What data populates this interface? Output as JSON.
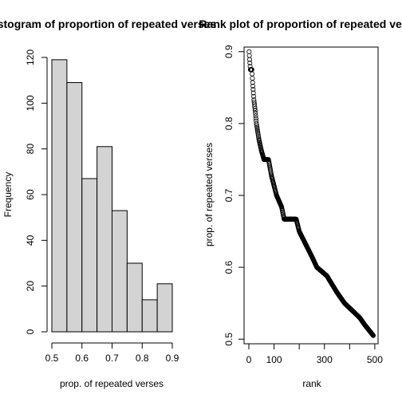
{
  "chart_data": [
    {
      "type": "bar",
      "title": "Histogram of proportion of repeated verses",
      "xlabel": "prop. of repeated verses",
      "ylabel": "Frequency",
      "bins": [
        [
          0.5,
          0.55
        ],
        [
          0.55,
          0.6
        ],
        [
          0.6,
          0.65
        ],
        [
          0.65,
          0.7
        ],
        [
          0.7,
          0.75
        ],
        [
          0.75,
          0.8
        ],
        [
          0.8,
          0.85
        ],
        [
          0.85,
          0.9
        ]
      ],
      "values": [
        119,
        109,
        67,
        81,
        53,
        30,
        14,
        21
      ],
      "xticks": [
        0.5,
        0.6,
        0.7,
        0.8,
        0.9
      ],
      "xtick_labels": [
        "0.5",
        "0.6",
        "0.7",
        "0.8",
        "0.9"
      ],
      "yticks": [
        0,
        20,
        40,
        60,
        80,
        100,
        120
      ],
      "ytick_labels": [
        "0",
        "20",
        "40",
        "60",
        "80",
        "100",
        "120"
      ],
      "xlim": [
        0.5,
        0.9
      ],
      "ylim": [
        0,
        120
      ],
      "bar_color": "#d3d3d3"
    },
    {
      "type": "scatter",
      "title": "Rank plot of proportion of repeated verses",
      "xlabel": "rank",
      "ylabel": "prop. of repeated verses",
      "n": 494,
      "y_profile": [
        [
          1,
          0.9
        ],
        [
          3,
          0.889
        ],
        [
          6,
          0.875
        ],
        [
          12,
          0.875
        ],
        [
          15,
          0.857
        ],
        [
          20,
          0.833
        ],
        [
          25,
          0.818
        ],
        [
          30,
          0.8
        ],
        [
          40,
          0.778
        ],
        [
          50,
          0.762
        ],
        [
          60,
          0.75
        ],
        [
          78,
          0.75
        ],
        [
          90,
          0.727
        ],
        [
          110,
          0.7
        ],
        [
          130,
          0.684
        ],
        [
          140,
          0.667
        ],
        [
          188,
          0.667
        ],
        [
          200,
          0.65
        ],
        [
          220,
          0.636
        ],
        [
          250,
          0.615
        ],
        [
          270,
          0.6
        ],
        [
          310,
          0.588
        ],
        [
          350,
          0.565
        ],
        [
          380,
          0.55
        ],
        [
          410,
          0.54
        ],
        [
          440,
          0.53
        ],
        [
          460,
          0.52
        ],
        [
          494,
          0.505
        ]
      ],
      "xticks": [
        0,
        100,
        200,
        300,
        400,
        500
      ],
      "xtick_labels": [
        "0",
        "100",
        "",
        "300",
        "",
        "500"
      ],
      "yticks": [
        0.5,
        0.6,
        0.7,
        0.8,
        0.9
      ],
      "ytick_labels": [
        "0.5",
        "0.6",
        "0.7",
        "0.8",
        "0.9"
      ],
      "xlim": [
        -19,
        513
      ],
      "ylim": [
        0.4936,
        0.9064
      ]
    }
  ]
}
